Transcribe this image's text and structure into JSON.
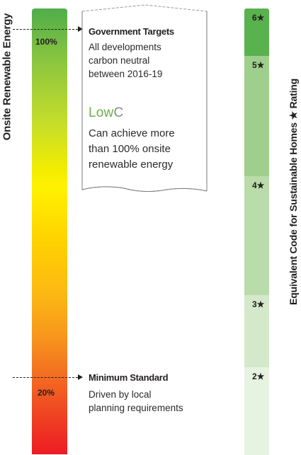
{
  "left_axis": {
    "label": "Onsite Renewable Energy",
    "ticks": [
      "100%",
      "20%"
    ]
  },
  "right_axis": {
    "label": "Equivalent Code for Sustainable Homes ★ Rating",
    "ratings": [
      "6★",
      "5★",
      "4★",
      "3★",
      "2★"
    ]
  },
  "callout": {
    "gov_title": "Government Targets",
    "gov_lines": [
      "All developments",
      "carbon neutral",
      "between 2016-19"
    ],
    "brand_low": "Low",
    "brand_c": "C",
    "brand_lines": [
      "Can achieve more",
      "than 100% onsite",
      "renewable energy"
    ]
  },
  "minimum": {
    "title": "Minimum Standard",
    "lines": [
      "Driven by local",
      "planning requirements"
    ]
  },
  "colors": {
    "bar_top": "#4fad4a",
    "bar_mid": "#fff200",
    "bar_bottom": "#ed1c24",
    "brand_green": "#6ab04c",
    "rating_dark": "#59b24d",
    "rating_light": "#e7f3e1"
  }
}
